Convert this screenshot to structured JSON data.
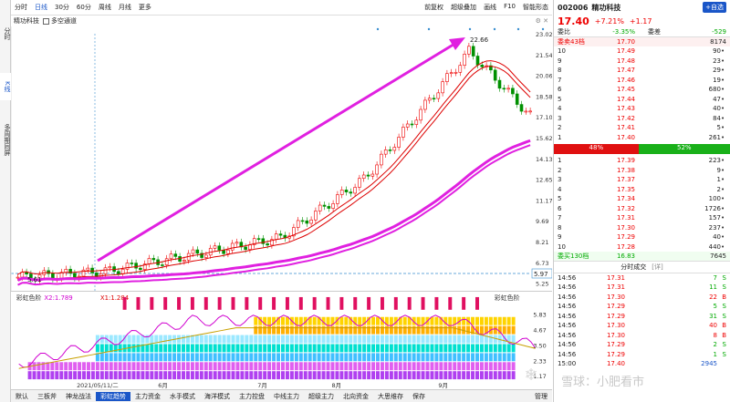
{
  "left_tabs": [
    "分时",
    "K线",
    "多周期同屏"
  ],
  "timeframes": [
    "分时",
    "日线",
    "30分",
    "60分",
    "周线",
    "月线",
    "更多"
  ],
  "toolbar_right": [
    "前复权",
    "超级叠加",
    "画线",
    "F10",
    "智能形态"
  ],
  "sub_title": {
    "name": "精功科技",
    "toggle": "多空通道"
  },
  "price_axis": [
    "23.02",
    "21.54",
    "20.06",
    "18.58",
    "17.10",
    "15.62",
    "14.13",
    "12.65",
    "11.17",
    "9.69",
    "8.21",
    "6.73",
    "5.25"
  ],
  "annotations": {
    "high": "22.66",
    "low": "5.61",
    "current": "5.97"
  },
  "indicator": {
    "name": "彩虹色阶",
    "x2": "X2:1.789",
    "x1": "X1:1.284",
    "axis": [
      "5.83",
      "4.67",
      "3.50",
      "2.33",
      "1.17"
    ]
  },
  "dates": [
    "2021/05/11/二",
    "6月",
    "7月",
    "8月",
    "9月"
  ],
  "bottom_tabs": [
    "默认",
    "三板斧",
    "神龙战法",
    "彩虹趋势",
    "主力资金",
    "水手模式",
    "海洋模式",
    "主力控盘",
    "中线主力",
    "超级主力",
    "北向资金",
    "大思维存",
    "保存",
    "管理"
  ],
  "stock": {
    "code": "002006",
    "name": "精功科技",
    "price": "17.40",
    "change_pct": "+7.21%",
    "change": "+1.17",
    "add_label": "+自选"
  },
  "order_ratio": {
    "wb_label": "委比",
    "wb": "-3.35%",
    "wc_label": "委差",
    "wc": "-529"
  },
  "sell_header": {
    "label": "委卖43档",
    "price": "17.70",
    "vol": "8174"
  },
  "sells": [
    {
      "lvl": "10",
      "price": "17.49",
      "vol": "90"
    },
    {
      "lvl": "9",
      "price": "17.48",
      "vol": "23"
    },
    {
      "lvl": "8",
      "price": "17.47",
      "vol": "29"
    },
    {
      "lvl": "7",
      "price": "17.46",
      "vol": "19"
    },
    {
      "lvl": "6",
      "price": "17.45",
      "vol": "680"
    },
    {
      "lvl": "5",
      "price": "17.44",
      "vol": "47"
    },
    {
      "lvl": "4",
      "price": "17.43",
      "vol": "40"
    },
    {
      "lvl": "3",
      "price": "17.42",
      "vol": "84"
    },
    {
      "lvl": "2",
      "price": "17.41",
      "vol": "5"
    },
    {
      "lvl": "1",
      "price": "17.40",
      "vol": "261"
    }
  ],
  "pressure": {
    "left": "48%",
    "right": "52%"
  },
  "buys": [
    {
      "lvl": "1",
      "price": "17.39",
      "vol": "223"
    },
    {
      "lvl": "2",
      "price": "17.38",
      "vol": "9"
    },
    {
      "lvl": "3",
      "price": "17.37",
      "vol": "1"
    },
    {
      "lvl": "4",
      "price": "17.35",
      "vol": "2"
    },
    {
      "lvl": "5",
      "price": "17.34",
      "vol": "100"
    },
    {
      "lvl": "6",
      "price": "17.32",
      "vol": "1726"
    },
    {
      "lvl": "7",
      "price": "17.31",
      "vol": "157"
    },
    {
      "lvl": "8",
      "price": "17.30",
      "vol": "237"
    },
    {
      "lvl": "9",
      "price": "17.29",
      "vol": "40"
    },
    {
      "lvl": "10",
      "price": "17.28",
      "vol": "440"
    }
  ],
  "buy_footer": {
    "label": "委买130档",
    "price": "16.83",
    "vol": "7645"
  },
  "trades_header": {
    "title": "分时成交",
    "icon": "[详]"
  },
  "trades": [
    {
      "time": "14:56",
      "price": "17.31",
      "vol": "7",
      "dir": "S"
    },
    {
      "time": "14:56",
      "price": "17.31",
      "vol": "11",
      "dir": "S"
    },
    {
      "time": "14:56",
      "price": "17.30",
      "vol": "22",
      "dir": "B"
    },
    {
      "time": "14:56",
      "price": "17.29",
      "vol": "5",
      "dir": "S"
    },
    {
      "time": "14:56",
      "price": "17.29",
      "vol": "31",
      "dir": "S"
    },
    {
      "time": "14:56",
      "price": "17.30",
      "vol": "40",
      "dir": "B"
    },
    {
      "time": "14:56",
      "price": "17.30",
      "vol": "8",
      "dir": "B"
    },
    {
      "time": "14:56",
      "price": "17.29",
      "vol": "2",
      "dir": "S"
    },
    {
      "time": "14:56",
      "price": "17.29",
      "vol": "1",
      "dir": "S"
    },
    {
      "time": "15:00",
      "price": "17.40",
      "vol": "2945",
      "dir": ""
    }
  ],
  "watermark": "雪球：小肥看市"
}
